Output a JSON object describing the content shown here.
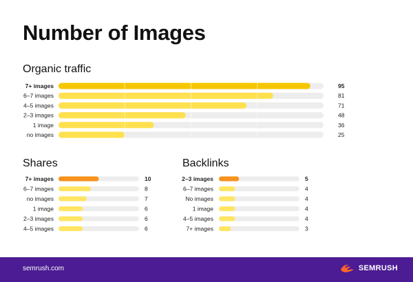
{
  "title": "Number of Images",
  "colors": {
    "track": "#ededed",
    "yellow_top": "#f6c700",
    "yellow": "#ffe14f",
    "yellow_light": "#ffe563",
    "orange_top": "#f6921e",
    "footer_bg": "#4b1c93",
    "logo_accent": "#ff642d"
  },
  "footer": {
    "url": "semrush.com",
    "logo_text": "SEMRUSH",
    "logo_icon": "semrush-fireball-icon"
  },
  "chart_data": [
    {
      "type": "bar",
      "title": "Organic traffic",
      "categories": [
        "7+ images",
        "6–7 images",
        "4–5 images",
        "2–3 images",
        "1 image",
        "no images"
      ],
      "values": [
        95,
        81,
        71,
        48,
        36,
        25
      ],
      "highlight": "7+ images",
      "xlim": [
        0,
        100
      ]
    },
    {
      "type": "bar",
      "title": "Shares",
      "categories": [
        "7+ images",
        "6–7 images",
        "no images",
        "1 image",
        "2–3 images",
        "4–5 images"
      ],
      "values": [
        10,
        8,
        7,
        6,
        6,
        6
      ],
      "highlight": "7+ images",
      "xlim": [
        0,
        20
      ]
    },
    {
      "type": "bar",
      "title": "Backlinks",
      "categories": [
        "2–3 images",
        "6–7 images",
        "No images",
        "1 image",
        "4–5 images",
        "7+ images"
      ],
      "values": [
        5,
        4,
        4,
        4,
        4,
        3
      ],
      "highlight": "2–3 images",
      "xlim": [
        0,
        20
      ]
    }
  ]
}
